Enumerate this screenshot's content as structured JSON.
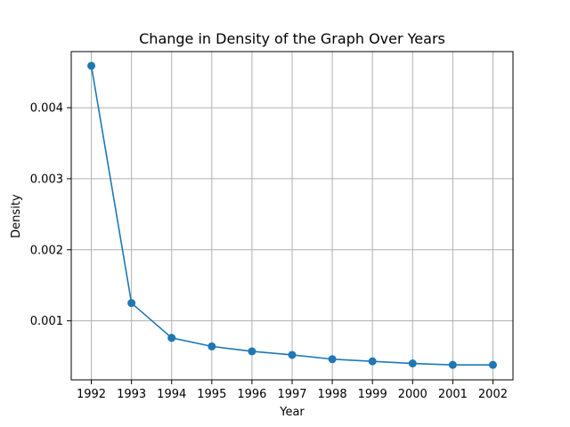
{
  "chart_data": {
    "type": "line",
    "title": "Change in Density of the Graph Over Years",
    "xlabel": "Year",
    "ylabel": "Density",
    "x": [
      "1992",
      "1993",
      "1994",
      "1995",
      "1996",
      "1997",
      "1998",
      "1999",
      "2000",
      "2001",
      "2002"
    ],
    "series": [
      {
        "values": [
          0.00459,
          0.00125,
          0.00076,
          0.00064,
          0.00057,
          0.00052,
          0.00046,
          0.00043,
          0.0004,
          0.00038,
          0.00038
        ],
        "color": "#1f77b4",
        "marker": "circle"
      }
    ],
    "xlim": [
      1991.5,
      2002.5
    ],
    "ylim": [
      0.000169,
      0.00479
    ],
    "yticks": [
      0.001,
      0.002,
      0.003,
      0.004
    ],
    "ytick_labels": [
      "0.001",
      "0.002",
      "0.003",
      "0.004"
    ],
    "grid": true,
    "legend": "none"
  }
}
